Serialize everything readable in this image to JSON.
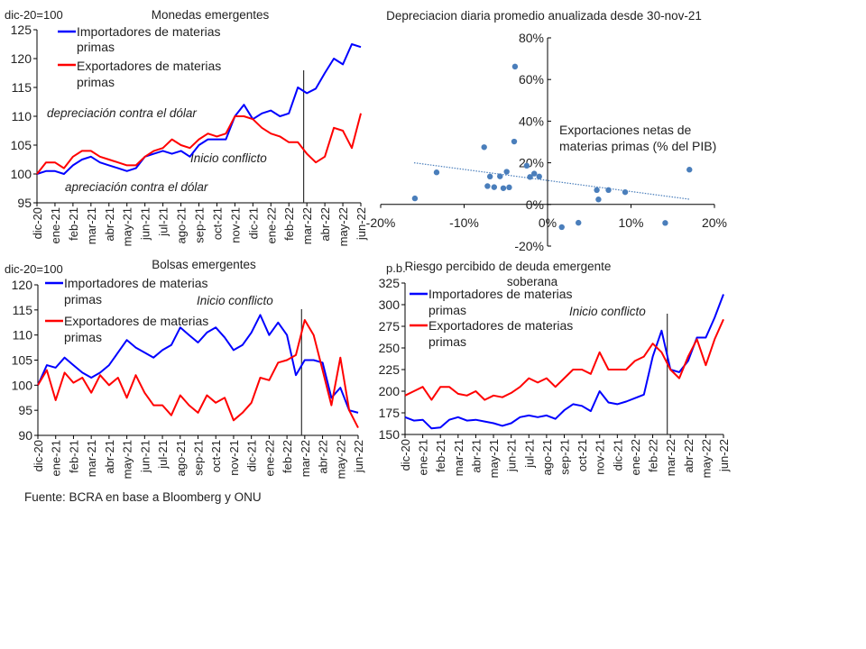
{
  "source": "Fuente: BCRA en base a Bloomberg  y ONU",
  "colors": {
    "importadores": "#0000ff",
    "exportadores": "#ff0000",
    "scatter": "#4a7ebb",
    "event_line": "#333333"
  },
  "chart_data": [
    {
      "id": "monedas",
      "type": "line",
      "title": "Monedas emergentes",
      "ylabel": "dic-20=100",
      "ylim": [
        95,
        125
      ],
      "yticks": [
        95,
        100,
        105,
        110,
        115,
        120,
        125
      ],
      "xtick_labels": [
        "dic-20",
        "ene-21",
        "feb-21",
        "mar-21",
        "abr-21",
        "may-21",
        "jun-21",
        "jul-21",
        "ago-21",
        "sep-21",
        "oct-21",
        "nov-21",
        "dic-21",
        "ene-22",
        "feb-22",
        "mar-22",
        "abr-22",
        "may-22",
        "jun-22"
      ],
      "event": {
        "label": "Inicio conflicto",
        "date": "2022-02-24"
      },
      "annotations": [
        "depreciación contra el dólar",
        "apreciación contra el dólar"
      ],
      "legend_position": "top-left",
      "series": [
        {
          "name": "Importadores de materias primas",
          "name_line1": "Importadores de materias",
          "name_line2": "primas",
          "values": [
            100,
            100.5,
            100.5,
            100,
            101.5,
            102.5,
            103,
            102,
            101.5,
            101,
            100.5,
            101,
            103,
            103.5,
            104,
            103.5,
            104,
            103,
            105,
            106,
            106,
            106,
            110,
            112,
            109.5,
            110.5,
            111,
            110,
            110.5,
            115,
            114,
            114.8,
            117.5,
            120,
            119,
            122.5,
            122
          ]
        },
        {
          "name": "Exportadores de materias primas",
          "name_line1": "Exportadores de materias",
          "name_line2": "primas",
          "values": [
            100,
            102,
            102,
            101,
            103,
            104,
            104,
            103,
            102.5,
            102,
            101.5,
            101.5,
            103,
            104,
            104.5,
            106,
            105,
            104.5,
            106,
            107,
            106.5,
            107,
            110,
            110,
            109.5,
            108,
            107,
            106.5,
            105.5,
            105.5,
            103.5,
            102,
            103,
            108,
            107.5,
            104.5,
            110.5
          ]
        }
      ]
    },
    {
      "id": "depreciacion",
      "type": "scatter",
      "title": "Depreciacion diaria promedio anualizada desde 30-nov-21",
      "xlabel": "Exportaciones netas de materias primas (% del PIB)",
      "xlabel_line1": "Exportaciones netas de",
      "xlabel_line2": "materias primas (% del PIB)",
      "xlim": [
        -20,
        20
      ],
      "ylim": [
        -20,
        80
      ],
      "xticks": [
        -20,
        -10,
        0,
        10,
        20
      ],
      "yticks": [
        -20,
        0,
        20,
        40,
        60,
        80
      ],
      "trendline": [
        [
          -16,
          20
        ],
        [
          17,
          2.5
        ]
      ],
      "points": [
        [
          -15.9,
          2.9
        ],
        [
          -13.3,
          15.4
        ],
        [
          -7.6,
          27.5
        ],
        [
          -7.2,
          8.8
        ],
        [
          -6.9,
          13.4
        ],
        [
          -6.4,
          8.3
        ],
        [
          -5.7,
          13.5
        ],
        [
          -5.3,
          7.8
        ],
        [
          -4.9,
          15.7
        ],
        [
          -4.6,
          8.2
        ],
        [
          -3.9,
          66.2
        ],
        [
          -4.0,
          30.2
        ],
        [
          -2.5,
          18.6
        ],
        [
          -2.1,
          13.2
        ],
        [
          -1.6,
          14.8
        ],
        [
          -1.0,
          13.4
        ],
        [
          1.7,
          -10.9
        ],
        [
          3.7,
          -8.8
        ],
        [
          5.9,
          6.9
        ],
        [
          6.1,
          2.4
        ],
        [
          7.3,
          6.9
        ],
        [
          9.3,
          5.9
        ],
        [
          14.1,
          -8.9
        ],
        [
          17.0,
          16.7
        ]
      ]
    },
    {
      "id": "bolsas",
      "type": "line",
      "title": "Bolsas emergentes",
      "ylabel": "dic-20=100",
      "ylim": [
        90,
        120
      ],
      "yticks": [
        90,
        95,
        100,
        105,
        110,
        115,
        120
      ],
      "xtick_labels": [
        "dic-20",
        "ene-21",
        "feb-21",
        "mar-21",
        "abr-21",
        "may-21",
        "jun-21",
        "jul-21",
        "ago-21",
        "sep-21",
        "oct-21",
        "nov-21",
        "dic-21",
        "ene-22",
        "feb-22",
        "mar-22",
        "abr-22",
        "may-22",
        "jun-22"
      ],
      "event": {
        "label": "Inicio conflicto",
        "date": "2022-02-24"
      },
      "legend_position": "top-left",
      "series": [
        {
          "name": "Importadores de materias primas",
          "name_line1": "Importadores de materias",
          "name_line2": "primas",
          "values": [
            100,
            104,
            103.5,
            105.5,
            104,
            102.5,
            101.5,
            102.5,
            104,
            106.5,
            109,
            107.5,
            106.5,
            105.5,
            107,
            108,
            111.5,
            110,
            108.5,
            110.5,
            111.5,
            109.5,
            107,
            108,
            110.5,
            114,
            110,
            112.5,
            110,
            102,
            105,
            105,
            104.5,
            97.5,
            99.5,
            95,
            94.5
          ]
        },
        {
          "name": "Exportadores de materias primas",
          "name_line1": "Exportadores de materias",
          "name_line2": "primas",
          "values": [
            100,
            103,
            97,
            102.5,
            100.5,
            101.5,
            98.5,
            102,
            100,
            101.5,
            97.5,
            102,
            98.5,
            96,
            96,
            94,
            98,
            96,
            94.5,
            98,
            96.5,
            97.5,
            93,
            94.5,
            96.5,
            101.5,
            101,
            104.5,
            105,
            106,
            113,
            110,
            103,
            96,
            105.5,
            95,
            91.5
          ]
        }
      ]
    },
    {
      "id": "riesgo",
      "type": "line",
      "title": "Riesgo percibido de deuda emergente soberana",
      "title_line1": "Riesgo percibido de deuda emergente",
      "title_line2": "soberana",
      "ylabel": "p.b.",
      "ylim": [
        150,
        325
      ],
      "yticks": [
        150,
        175,
        200,
        225,
        250,
        275,
        300,
        325
      ],
      "xtick_labels": [
        "dic-20",
        "ene-21",
        "feb-21",
        "mar-21",
        "abr-21",
        "may-21",
        "jun-21",
        "jul-21",
        "ago-21",
        "sep-21",
        "oct-21",
        "nov-21",
        "dic-21",
        "ene-22",
        "feb-22",
        "mar-22",
        "abr-22",
        "may-22",
        "jun-22"
      ],
      "event": {
        "label": "Inicio conflicto",
        "date": "2022-02-24"
      },
      "legend_position": "top-left",
      "series": [
        {
          "name": "Importadores de materias primas",
          "name_line1": "Importadores de materias",
          "name_line2": "primas",
          "values": [
            170,
            166,
            167,
            157,
            158,
            167,
            170,
            166,
            167,
            165,
            163,
            160,
            163,
            170,
            172,
            170,
            172,
            168,
            178,
            185,
            183,
            177,
            200,
            187,
            185,
            188,
            192,
            196,
            240,
            270,
            225,
            222,
            235,
            262,
            262,
            285,
            312
          ]
        },
        {
          "name": "Exportadores de materias primas",
          "name_line1": "Exportadores de materias",
          "name_line2": "primas",
          "values": [
            195,
            200,
            205,
            190,
            205,
            205,
            197,
            195,
            200,
            190,
            195,
            193,
            198,
            205,
            215,
            210,
            215,
            205,
            215,
            225,
            225,
            220,
            245,
            225,
            225,
            225,
            235,
            240,
            255,
            245,
            225,
            215,
            240,
            260,
            230,
            260,
            283
          ]
        }
      ]
    }
  ]
}
